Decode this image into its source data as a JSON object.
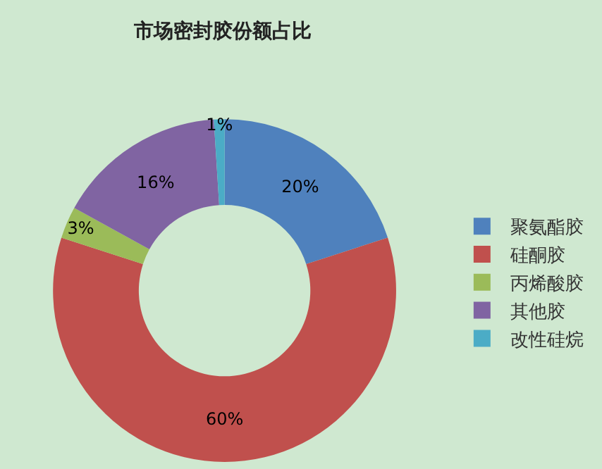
{
  "chart_data": {
    "type": "donut",
    "title": "市场密封胶份额占比",
    "categories": [
      "聚氨酯胶",
      "硅酮胶",
      "丙烯酸胶",
      "其他胶",
      "改性硅烷"
    ],
    "values": [
      20,
      60,
      3,
      16,
      1
    ],
    "value_labels": [
      "20%",
      "60%",
      "3%",
      "16%",
      "1%"
    ],
    "colors": [
      "#4f81bd",
      "#c0504d",
      "#9bbb59",
      "#8064a2",
      "#4bacc6"
    ],
    "legend": "right"
  }
}
